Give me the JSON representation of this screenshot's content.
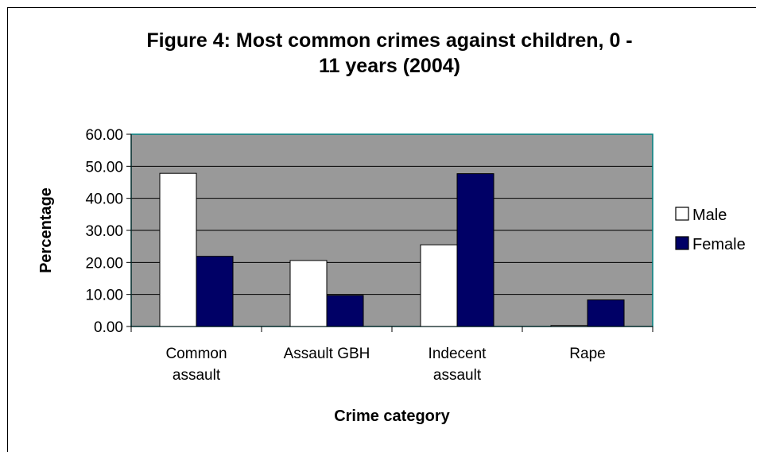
{
  "chart_data": {
    "type": "bar",
    "title": "Figure 4: Most common crimes against children, 0 - 11 years (2004)",
    "title_lines": [
      "Figure 4: Most common crimes against children, 0 -",
      "11 years (2004)"
    ],
    "xlabel": "Crime category",
    "ylabel": "Percentage",
    "categories": [
      [
        "Common",
        "assault"
      ],
      [
        "Assault GBH"
      ],
      [
        "Indecent",
        "assault"
      ],
      [
        "Rape"
      ]
    ],
    "series": [
      {
        "name": "Male",
        "values": [
          47.8,
          20.6,
          25.5,
          0.3
        ],
        "color": "#ffffff"
      },
      {
        "name": "Female",
        "values": [
          21.9,
          9.7,
          47.7,
          8.3
        ],
        "color": "#000066"
      }
    ],
    "ylim": [
      0,
      60
    ],
    "yticks": [
      "0.00",
      "10.00",
      "20.00",
      "30.00",
      "40.00",
      "50.00",
      "60.00"
    ],
    "grid": true,
    "plot_background": "#999999",
    "plot_border": "#008080",
    "legend_position": "right"
  }
}
